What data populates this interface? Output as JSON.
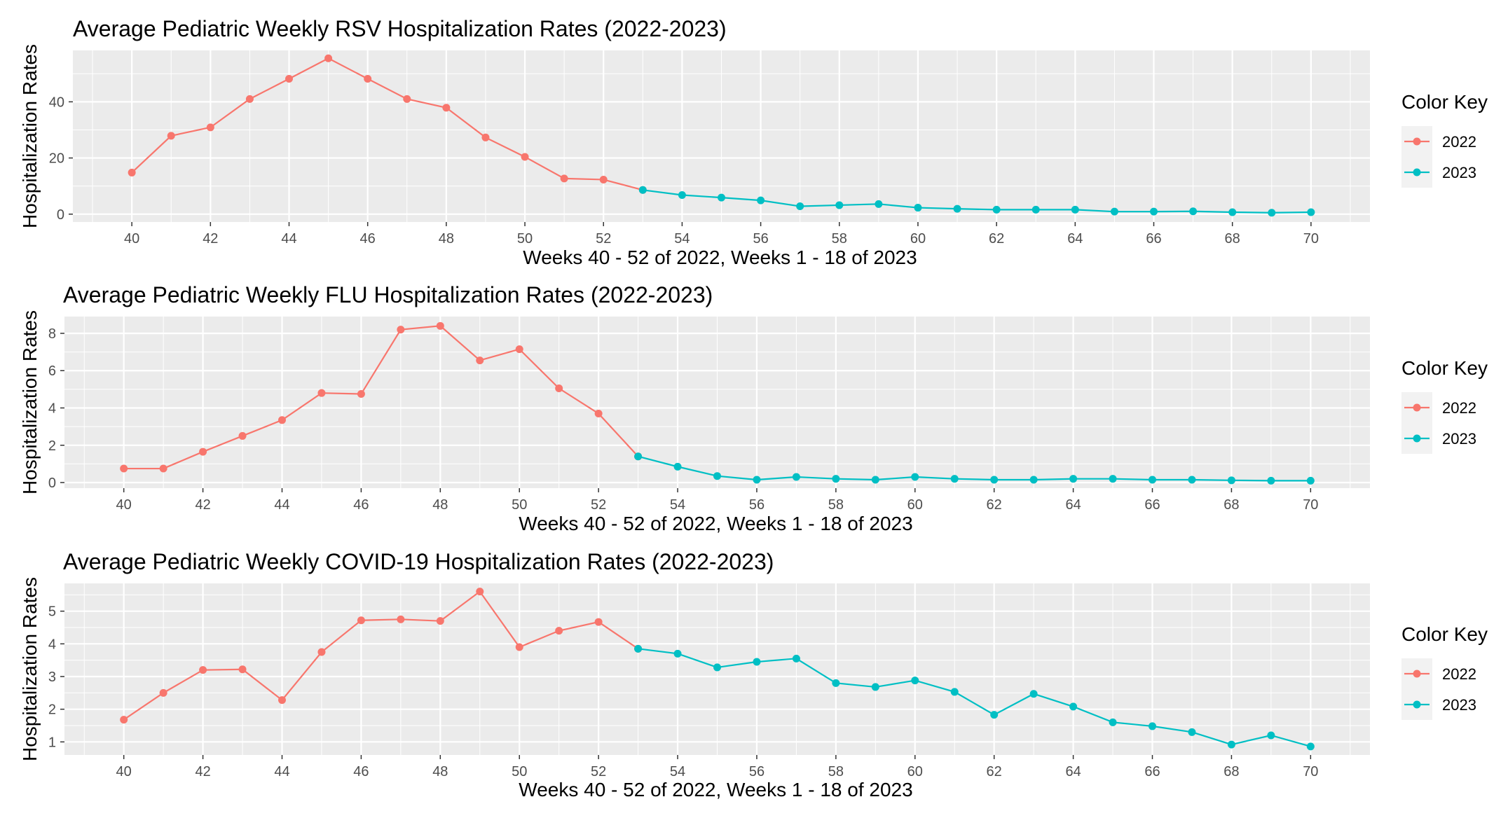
{
  "colors": {
    "2022": "#F8766D",
    "2023": "#00BFC4",
    "panel": "#EBEBEB"
  },
  "chart_data": [
    {
      "type": "line",
      "title": "Average Pediatric Weekly RSV Hospitalization Rates (2022-2023)",
      "xlabel": "Weeks 40 - 52 of 2022, Weeks 1 - 18 of 2023",
      "ylabel": "Hospitalization Rates",
      "xlim": [
        38.5,
        71.5
      ],
      "ylim": [
        -2.8,
        58.3
      ],
      "x_ticks": [
        40,
        42,
        44,
        46,
        48,
        50,
        52,
        54,
        56,
        58,
        60,
        62,
        64,
        66,
        68,
        70
      ],
      "y_ticks": [
        0,
        20,
        40
      ],
      "legend": {
        "title": "Color Key",
        "position": "right",
        "entries": [
          "2022",
          "2023"
        ]
      },
      "series": [
        {
          "name": "2022",
          "color": "#F8766D",
          "x": [
            40,
            41,
            42,
            43,
            44,
            45,
            46,
            47,
            48,
            49,
            50,
            51,
            52,
            53
          ],
          "y": [
            14.8,
            27.9,
            30.9,
            41.0,
            48.2,
            55.5,
            48.2,
            41.0,
            37.9,
            27.3,
            20.4,
            12.7,
            12.3,
            8.6
          ]
        },
        {
          "name": "2023",
          "color": "#00BFC4",
          "x": [
            53,
            54,
            55,
            56,
            57,
            58,
            59,
            60,
            61,
            62,
            63,
            64,
            65,
            66,
            67,
            68,
            69,
            70
          ],
          "y": [
            8.6,
            6.8,
            5.9,
            4.9,
            2.8,
            3.2,
            3.6,
            2.3,
            1.9,
            1.6,
            1.6,
            1.6,
            0.9,
            0.9,
            1.0,
            0.7,
            0.5,
            0.7
          ]
        }
      ]
    },
    {
      "type": "line",
      "title": "Average Pediatric Weekly FLU Hospitalization Rates (2022-2023)",
      "xlabel": "Weeks 40 - 52 of 2022, Weeks 1 - 18 of 2023",
      "ylabel": "Hospitalization Rates",
      "xlim": [
        38.5,
        71.5
      ],
      "ylim": [
        -0.3,
        8.9
      ],
      "x_ticks": [
        40,
        42,
        44,
        46,
        48,
        50,
        52,
        54,
        56,
        58,
        60,
        62,
        64,
        66,
        68,
        70
      ],
      "y_ticks": [
        0,
        2,
        4,
        6,
        8
      ],
      "legend": {
        "title": "Color Key",
        "position": "right",
        "entries": [
          "2022",
          "2023"
        ]
      },
      "series": [
        {
          "name": "2022",
          "color": "#F8766D",
          "x": [
            40,
            41,
            42,
            43,
            44,
            45,
            46,
            47,
            48,
            49,
            50,
            51,
            52,
            53
          ],
          "y": [
            0.75,
            0.75,
            1.65,
            2.5,
            3.35,
            4.8,
            4.75,
            8.2,
            8.4,
            6.55,
            7.15,
            5.05,
            3.7,
            1.4
          ]
        },
        {
          "name": "2023",
          "color": "#00BFC4",
          "x": [
            53,
            54,
            55,
            56,
            57,
            58,
            59,
            60,
            61,
            62,
            63,
            64,
            65,
            66,
            67,
            68,
            69,
            70
          ],
          "y": [
            1.4,
            0.85,
            0.35,
            0.15,
            0.3,
            0.2,
            0.15,
            0.3,
            0.2,
            0.15,
            0.15,
            0.2,
            0.2,
            0.15,
            0.15,
            0.12,
            0.1,
            0.1
          ]
        }
      ]
    },
    {
      "type": "line",
      "title": "Average Pediatric Weekly COVID-19 Hospitalization Rates (2022-2023)",
      "xlabel": "Weeks 40 - 52 of 2022, Weeks 1 - 18 of 2023",
      "ylabel": "Hospitalization Rates",
      "xlim": [
        38.5,
        71.5
      ],
      "ylim": [
        0.6,
        5.85
      ],
      "x_ticks": [
        40,
        42,
        44,
        46,
        48,
        50,
        52,
        54,
        56,
        58,
        60,
        62,
        64,
        66,
        68,
        70
      ],
      "y_ticks": [
        1,
        2,
        3,
        4,
        5
      ],
      "legend": {
        "title": "Color Key",
        "position": "right",
        "entries": [
          "2022",
          "2023"
        ]
      },
      "series": [
        {
          "name": "2022",
          "color": "#F8766D",
          "x": [
            40,
            41,
            42,
            43,
            44,
            45,
            46,
            47,
            48,
            49,
            50,
            51,
            52,
            53
          ],
          "y": [
            1.68,
            2.5,
            3.2,
            3.22,
            2.28,
            3.75,
            4.72,
            4.75,
            4.7,
            5.6,
            3.9,
            4.4,
            4.67,
            3.85
          ]
        },
        {
          "name": "2023",
          "color": "#00BFC4",
          "x": [
            53,
            54,
            55,
            56,
            57,
            58,
            59,
            60,
            61,
            62,
            63,
            64,
            65,
            66,
            67,
            68,
            69,
            70
          ],
          "y": [
            3.85,
            3.7,
            3.28,
            3.45,
            3.55,
            2.8,
            2.68,
            2.88,
            2.53,
            1.83,
            2.47,
            2.08,
            1.6,
            1.48,
            1.3,
            0.92,
            1.2,
            0.86
          ]
        }
      ]
    }
  ]
}
